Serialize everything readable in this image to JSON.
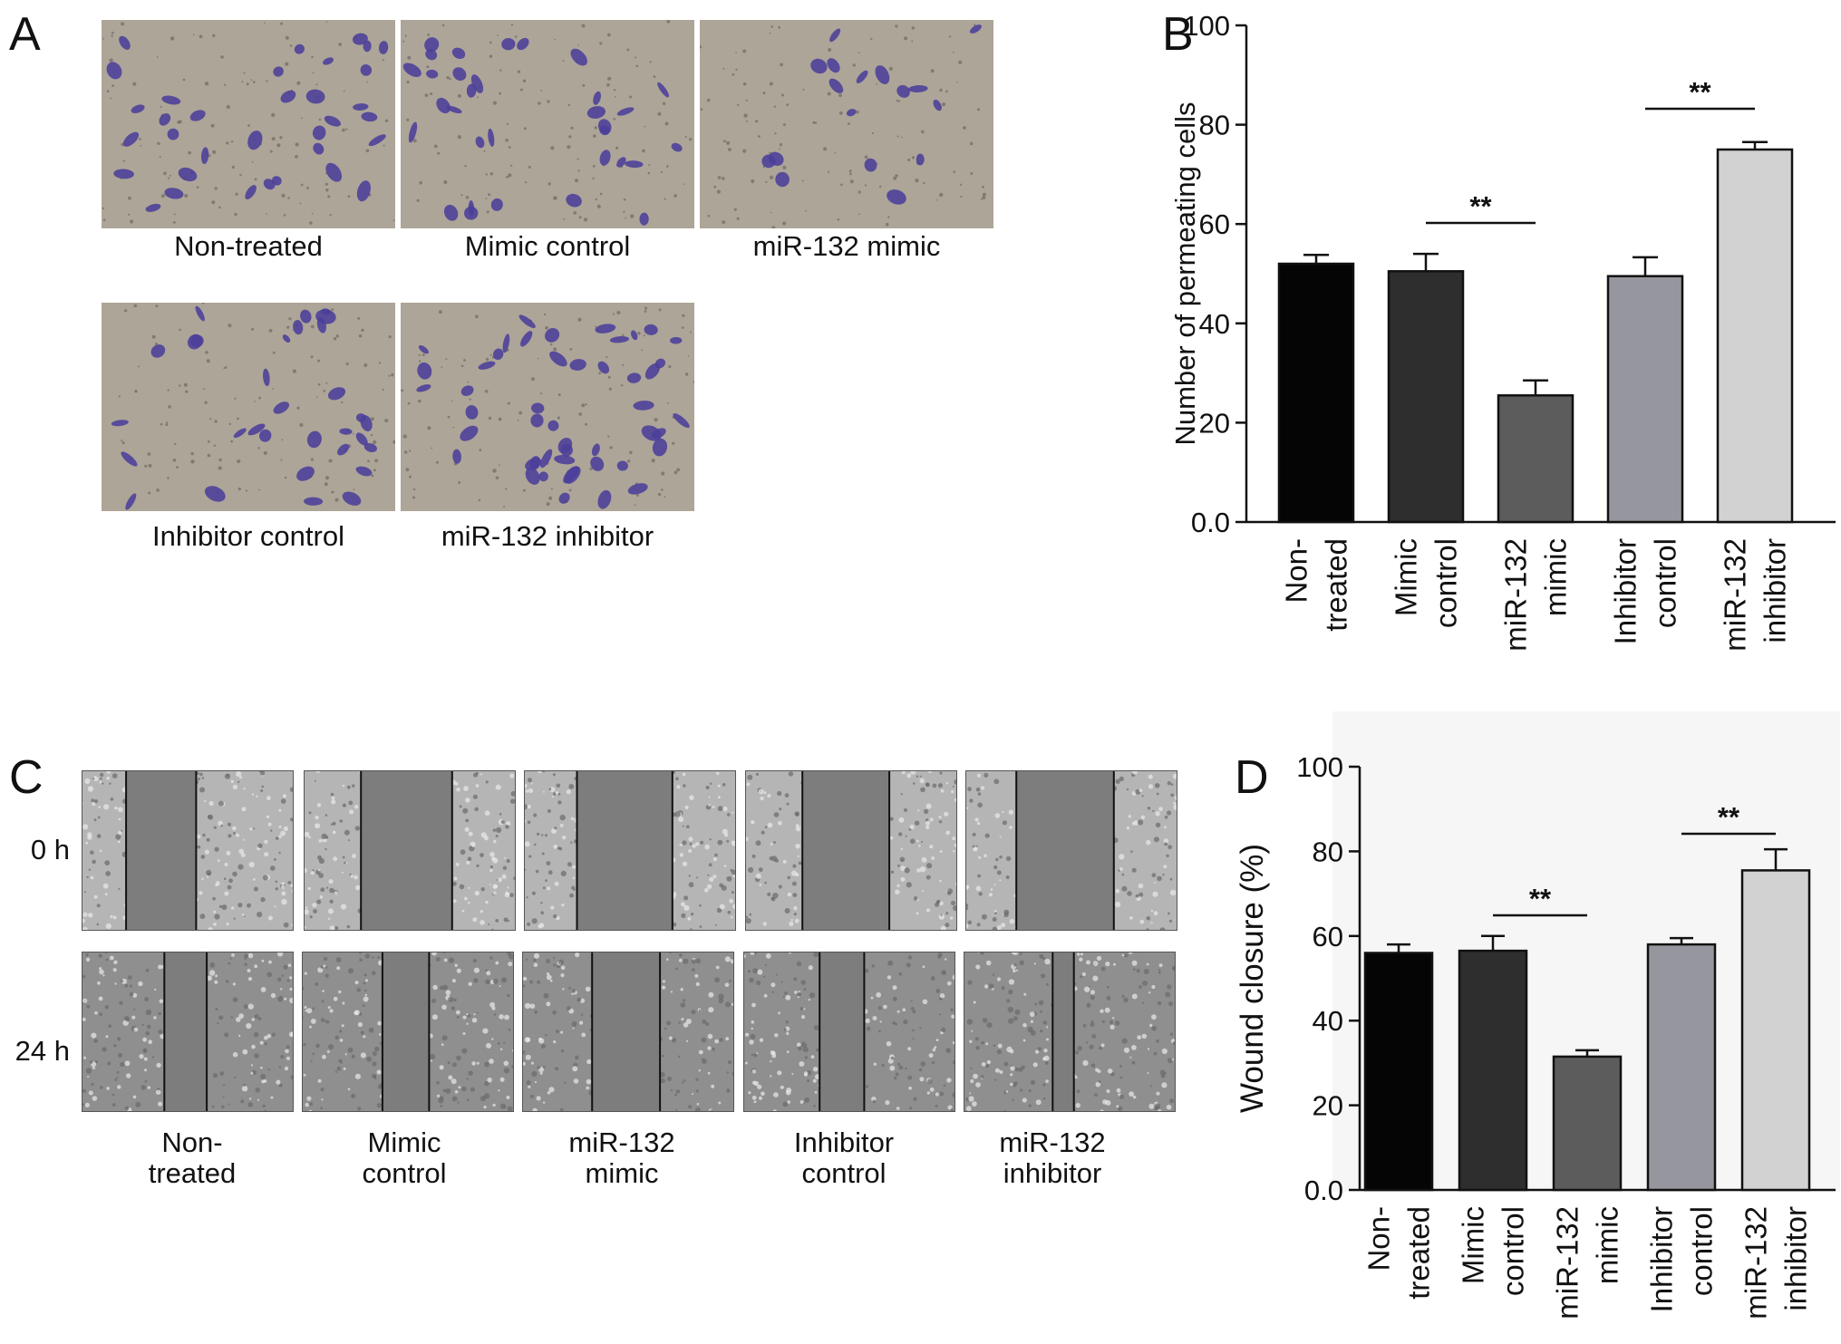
{
  "panel_a": {
    "letter": "A",
    "images": [
      {
        "caption": "Non-treated",
        "cells": 34
      },
      {
        "caption": "Mimic control",
        "cells": 32
      },
      {
        "caption": "miR-132 mimic",
        "cells": 17
      },
      {
        "caption": "Inhibitor control",
        "cells": 31
      },
      {
        "caption": "miR-132 inhibitor",
        "cells": 48
      }
    ]
  },
  "panel_c": {
    "letter": "C",
    "row_labels": [
      "0 h",
      "24 h"
    ],
    "groups": [
      {
        "line1": "Non-",
        "line2": "treated"
      },
      {
        "line1": "Mimic",
        "line2": "control"
      },
      {
        "line1": "miR-132",
        "line2": "mimic"
      },
      {
        "line1": "Inhibitor",
        "line2": "control"
      },
      {
        "line1": "miR-132",
        "line2": "inhibitor"
      }
    ],
    "colors": {
      "gap": "#7d7d7d",
      "cells": "#b5b5b5"
    }
  },
  "chart_data": [
    {
      "panel": "B",
      "type": "bar",
      "categories": [
        [
          "Non-",
          "treated"
        ],
        [
          "Mimic",
          "control"
        ],
        [
          "miR-132",
          "mimic"
        ],
        [
          "Inhibitor",
          "control"
        ],
        [
          "miR-132",
          "inhibitor"
        ]
      ],
      "values": [
        52,
        50.5,
        25.5,
        49.5,
        75
      ],
      "errors": [
        1.8,
        3.5,
        3,
        3.8,
        1.5
      ],
      "colors": [
        "#050505",
        "#2e2e2e",
        "#5c5c5c",
        "#96969e",
        "#d2d2d2"
      ],
      "ylabel": "Number of permeating cells",
      "ylim": [
        0,
        100
      ],
      "yticks": [
        "0.0",
        "20",
        "40",
        "60",
        "80",
        "100"
      ],
      "significance": [
        {
          "between": [
            1,
            2
          ],
          "label": "**"
        },
        {
          "between": [
            3,
            4
          ],
          "label": "**"
        }
      ]
    },
    {
      "panel": "D",
      "type": "bar",
      "categories": [
        [
          "Non-",
          "treated"
        ],
        [
          "Mimic",
          "control"
        ],
        [
          "miR-132",
          "mimic"
        ],
        [
          "Inhibitor",
          "control"
        ],
        [
          "miR-132",
          "inhibitor"
        ]
      ],
      "values": [
        56,
        56.5,
        31.5,
        58,
        75.5
      ],
      "errors": [
        2,
        3.5,
        1.5,
        1.5,
        5
      ],
      "colors": [
        "#050505",
        "#2e2e2e",
        "#5c5c5c",
        "#96969e",
        "#d2d2d2"
      ],
      "ylabel": "Wound closure (%)",
      "ylim": [
        0,
        100
      ],
      "yticks": [
        "0.0",
        "20",
        "40",
        "60",
        "80",
        "100"
      ],
      "significance": [
        {
          "between": [
            1,
            2
          ],
          "label": "**"
        },
        {
          "between": [
            3,
            4
          ],
          "label": "**"
        }
      ]
    }
  ]
}
